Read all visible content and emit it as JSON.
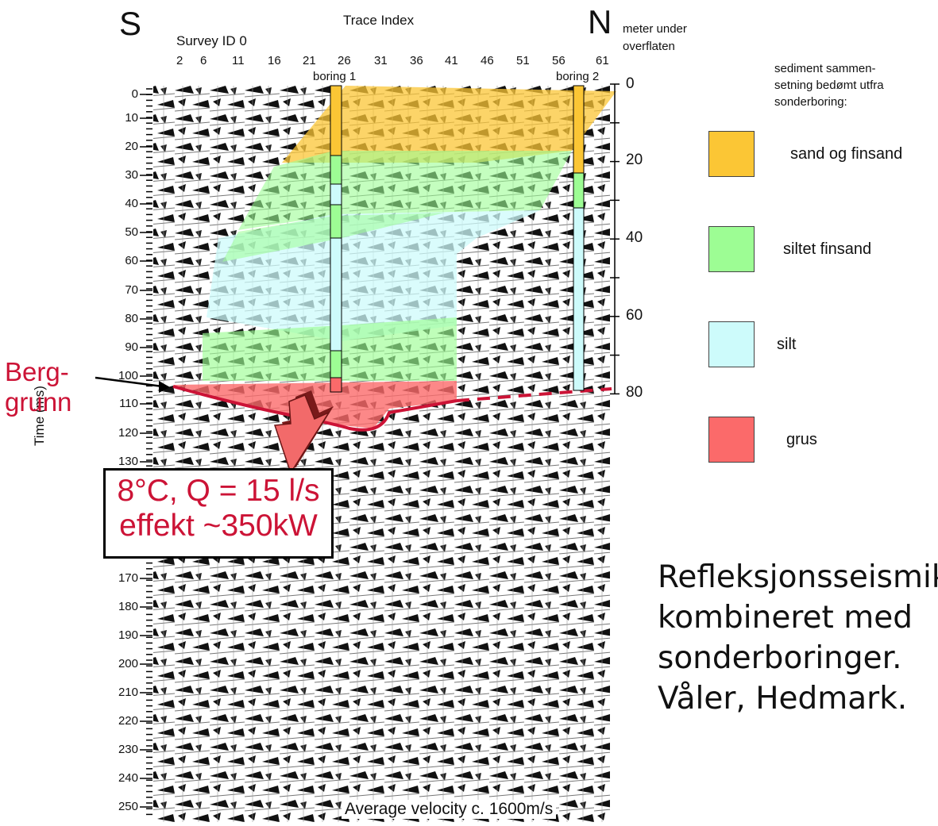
{
  "figure": {
    "direction_south": "S",
    "direction_north": "N",
    "x_axis_title": "Trace Index",
    "survey_label": "Survey ID 0",
    "trace_ticks": [
      "2",
      "6",
      "11",
      "16",
      "21",
      "26",
      "31",
      "36",
      "41",
      "46",
      "51",
      "56",
      "61"
    ],
    "y_axis_title": "Time (ms)",
    "time_ticks": [
      "0",
      "10",
      "20",
      "30",
      "40",
      "50",
      "60",
      "70",
      "80",
      "90",
      "100",
      "110",
      "120",
      "130",
      "170",
      "180",
      "190",
      "200",
      "210",
      "220",
      "230",
      "240",
      "250"
    ],
    "depth_axis_title": "meter under overflaten",
    "depth_ticks": [
      "0",
      "20",
      "40",
      "60",
      "80"
    ],
    "boreholes": [
      {
        "label": "boring 1",
        "layers": [
          "sand og finsand",
          "siltet finsand",
          "silt",
          "siltet finsand",
          "silt",
          "siltet finsand",
          "grus"
        ]
      },
      {
        "label": "boring 2",
        "layers": [
          "sand og finsand",
          "siltet finsand",
          "silt"
        ]
      }
    ],
    "bedrock_label": "Berg-\ngrunn",
    "callout_line1": "8°C, Q = 15 l/s",
    "callout_line2": "effekt ~350kW",
    "velocity_note": "Average velocity c. 1600m/s"
  },
  "legend": {
    "heading": "sediment sammen-\nsetning bedømt utfra\nsonderboring:",
    "items": [
      {
        "label": "sand og finsand",
        "color": "#fbc635"
      },
      {
        "label": "siltet finsand",
        "color": "#9dfd94"
      },
      {
        "label": "silt",
        "color": "#cdfbfb"
      },
      {
        "label": "grus",
        "color": "#fb6a6a"
      }
    ]
  },
  "caption": "Refleksjonsseismik\nkombineret med\nsonderboringer.\nVåler, Hedmark.",
  "colors": {
    "bedrock_line": "#cc1336",
    "sand": "#fbc635",
    "silt_sand": "#9dfd94",
    "silt": "#cdfbfb",
    "gravel": "#fb6a6a"
  }
}
